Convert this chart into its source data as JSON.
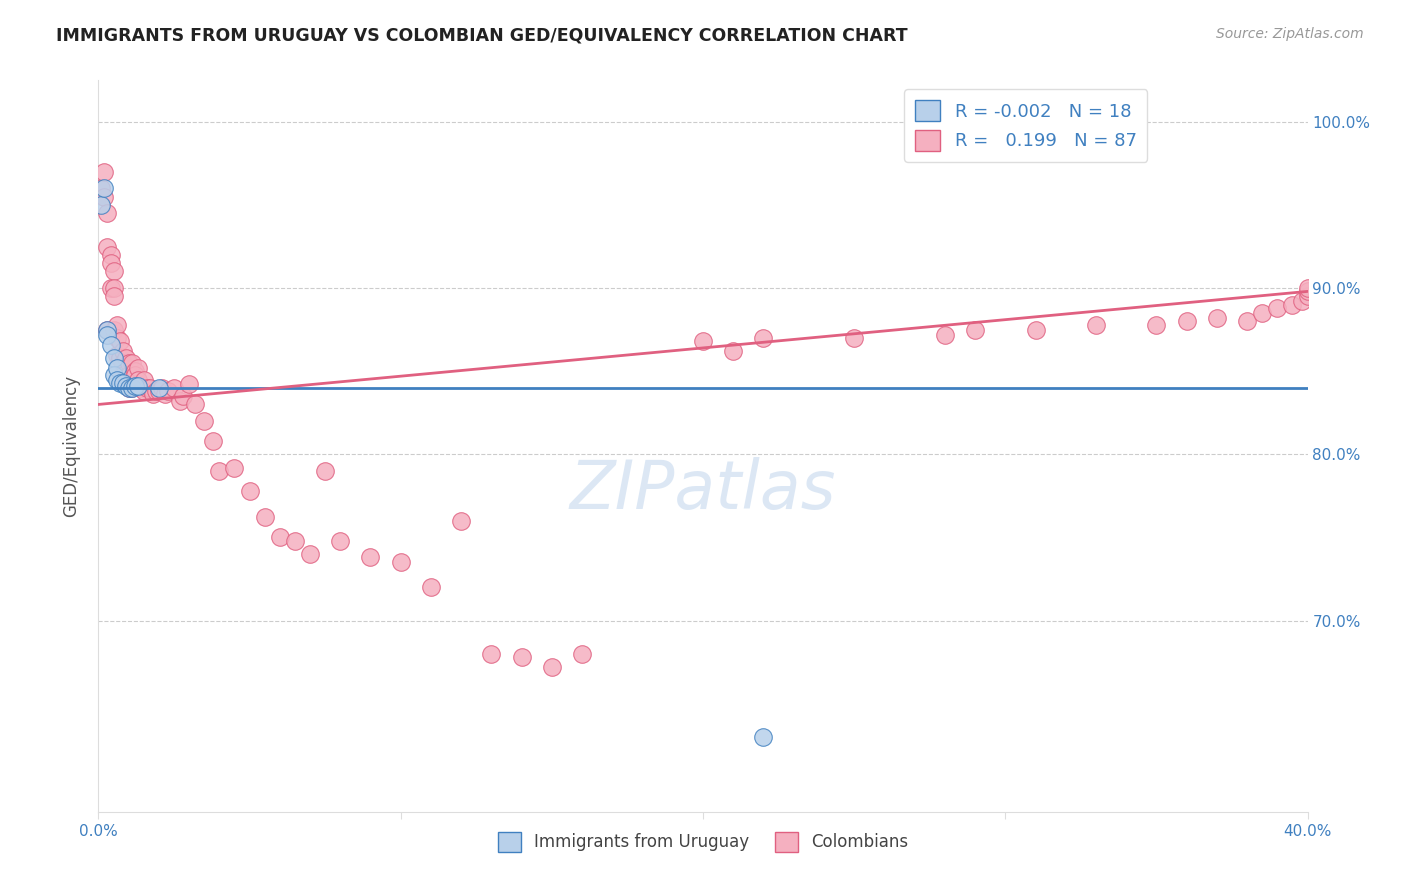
{
  "title": "IMMIGRANTS FROM URUGUAY VS COLOMBIAN GED/EQUIVALENCY CORRELATION CHART",
  "source": "Source: ZipAtlas.com",
  "ylabel": "GED/Equivalency",
  "x_min": 0.0,
  "x_max": 0.4,
  "y_min": 0.585,
  "y_max": 1.025,
  "legend_r_blue": "-0.002",
  "legend_n_blue": "18",
  "legend_r_pink": "0.199",
  "legend_n_pink": "87",
  "blue_color": "#b8d0ea",
  "pink_color": "#f5b0c0",
  "blue_line_color": "#4080c0",
  "pink_line_color": "#e06080",
  "watermark": "ZIPatlas",
  "blue_line_y0": 0.84,
  "blue_line_y1": 0.84,
  "pink_line_y0": 0.83,
  "pink_line_y1": 0.898,
  "blue_x": [
    0.001,
    0.002,
    0.003,
    0.003,
    0.004,
    0.005,
    0.005,
    0.006,
    0.006,
    0.007,
    0.008,
    0.009,
    0.01,
    0.011,
    0.012,
    0.013,
    0.02,
    0.22
  ],
  "blue_y": [
    0.95,
    0.96,
    0.875,
    0.872,
    0.866,
    0.858,
    0.848,
    0.852,
    0.845,
    0.843,
    0.843,
    0.841,
    0.84,
    0.84,
    0.841,
    0.841,
    0.84,
    0.63
  ],
  "pink_x": [
    0.001,
    0.002,
    0.002,
    0.003,
    0.003,
    0.003,
    0.004,
    0.004,
    0.004,
    0.005,
    0.005,
    0.005,
    0.005,
    0.006,
    0.006,
    0.006,
    0.007,
    0.007,
    0.007,
    0.008,
    0.008,
    0.008,
    0.009,
    0.009,
    0.01,
    0.01,
    0.01,
    0.011,
    0.011,
    0.012,
    0.012,
    0.013,
    0.013,
    0.014,
    0.015,
    0.015,
    0.016,
    0.017,
    0.018,
    0.019,
    0.02,
    0.021,
    0.022,
    0.023,
    0.025,
    0.027,
    0.028,
    0.03,
    0.032,
    0.035,
    0.038,
    0.04,
    0.045,
    0.05,
    0.055,
    0.06,
    0.065,
    0.07,
    0.075,
    0.08,
    0.09,
    0.1,
    0.11,
    0.12,
    0.13,
    0.14,
    0.15,
    0.16,
    0.2,
    0.21,
    0.22,
    0.25,
    0.28,
    0.29,
    0.31,
    0.33,
    0.35,
    0.36,
    0.37,
    0.38,
    0.385,
    0.39,
    0.395,
    0.398,
    0.4,
    0.4,
    0.4
  ],
  "pink_y": [
    0.96,
    0.97,
    0.955,
    0.875,
    0.945,
    0.925,
    0.92,
    0.915,
    0.9,
    0.91,
    0.9,
    0.895,
    0.875,
    0.87,
    0.878,
    0.86,
    0.868,
    0.858,
    0.858,
    0.862,
    0.855,
    0.848,
    0.858,
    0.845,
    0.855,
    0.848,
    0.84,
    0.855,
    0.84,
    0.85,
    0.848,
    0.852,
    0.845,
    0.84,
    0.838,
    0.845,
    0.84,
    0.84,
    0.836,
    0.838,
    0.838,
    0.84,
    0.836,
    0.838,
    0.84,
    0.832,
    0.835,
    0.842,
    0.83,
    0.82,
    0.808,
    0.79,
    0.792,
    0.778,
    0.762,
    0.75,
    0.748,
    0.74,
    0.79,
    0.748,
    0.738,
    0.735,
    0.72,
    0.76,
    0.68,
    0.678,
    0.672,
    0.68,
    0.868,
    0.862,
    0.87,
    0.87,
    0.872,
    0.875,
    0.875,
    0.878,
    0.878,
    0.88,
    0.882,
    0.88,
    0.885,
    0.888,
    0.89,
    0.892,
    0.895,
    0.898,
    0.9
  ]
}
